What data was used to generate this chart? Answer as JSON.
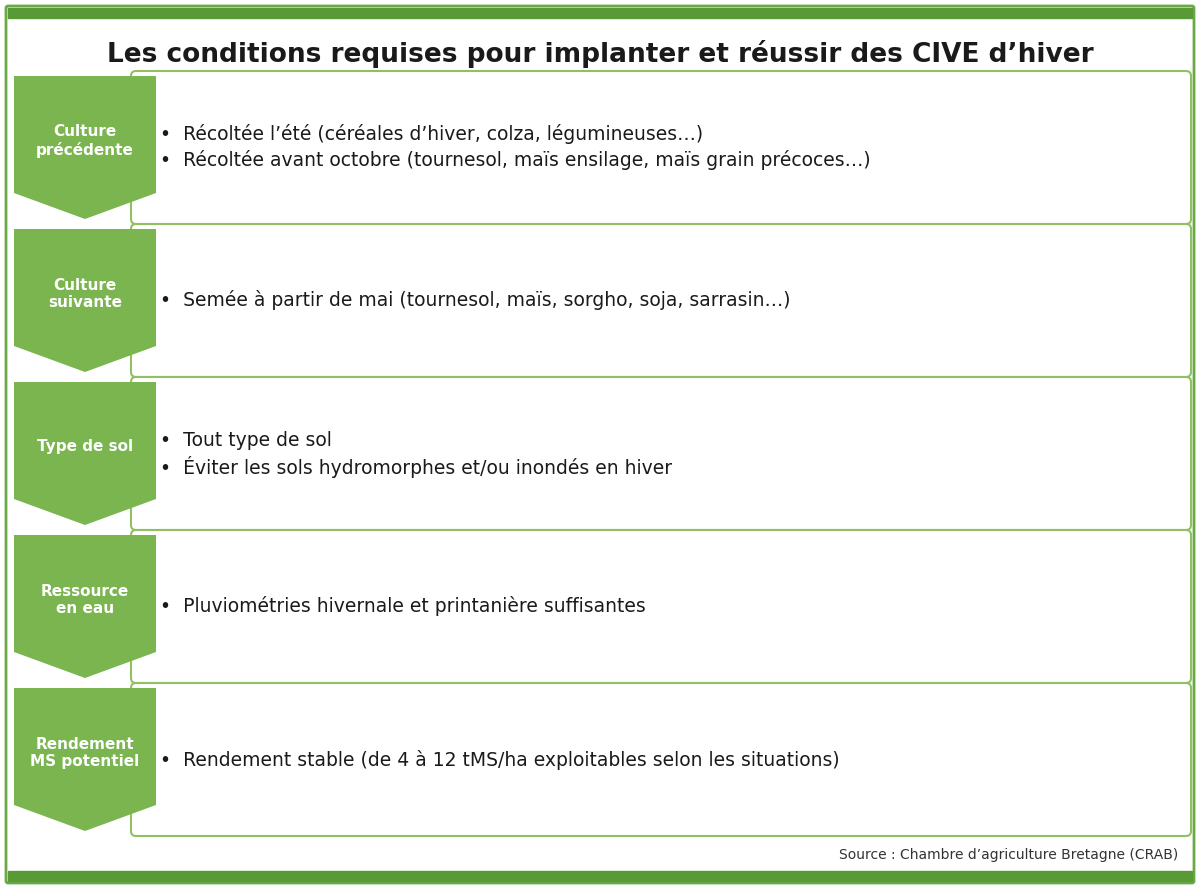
{
  "title": "Les conditions requises pour implanter et réussir des CIVE d’hiver",
  "source": "Source : Chambre d’agriculture Bretagne (CRAB)",
  "bg_color": "#ffffff",
  "border_color": "#6aaa46",
  "top_bar_color": "#5a9a36",
  "arrow_color": "#7ab550",
  "box_border_color": "#90c060",
  "box_bg_color": "#ffffff",
  "rows": [
    {
      "label": "Culture\nprécédente",
      "bullets": [
        "Récoltée l’été (céréales d’hiver, colza, légumineuses…)",
        "Récoltée avant octobre (tournesol, maïs ensilage, maïs grain précoces…)"
      ]
    },
    {
      "label": "Culture\nsuivante",
      "bullets": [
        "Semée à partir de mai (tournesol, maïs, sorgho, soja, sarrasin…)"
      ]
    },
    {
      "label": "Type de sol",
      "bullets": [
        "Tout type de sol",
        "Éviter les sols hydromorphes et/ou inondés en hiver"
      ]
    },
    {
      "label": "Ressource\nen eau",
      "bullets": [
        "Pluviométries hivernale et printanière suffisantes"
      ]
    },
    {
      "label": "Rendement\nMS potentiel",
      "bullets": [
        "Rendement stable (de 4 à 12 tMS/ha exploitables selon les situations)"
      ]
    }
  ],
  "fig_width": 12.0,
  "fig_height": 8.89,
  "dpi": 100
}
